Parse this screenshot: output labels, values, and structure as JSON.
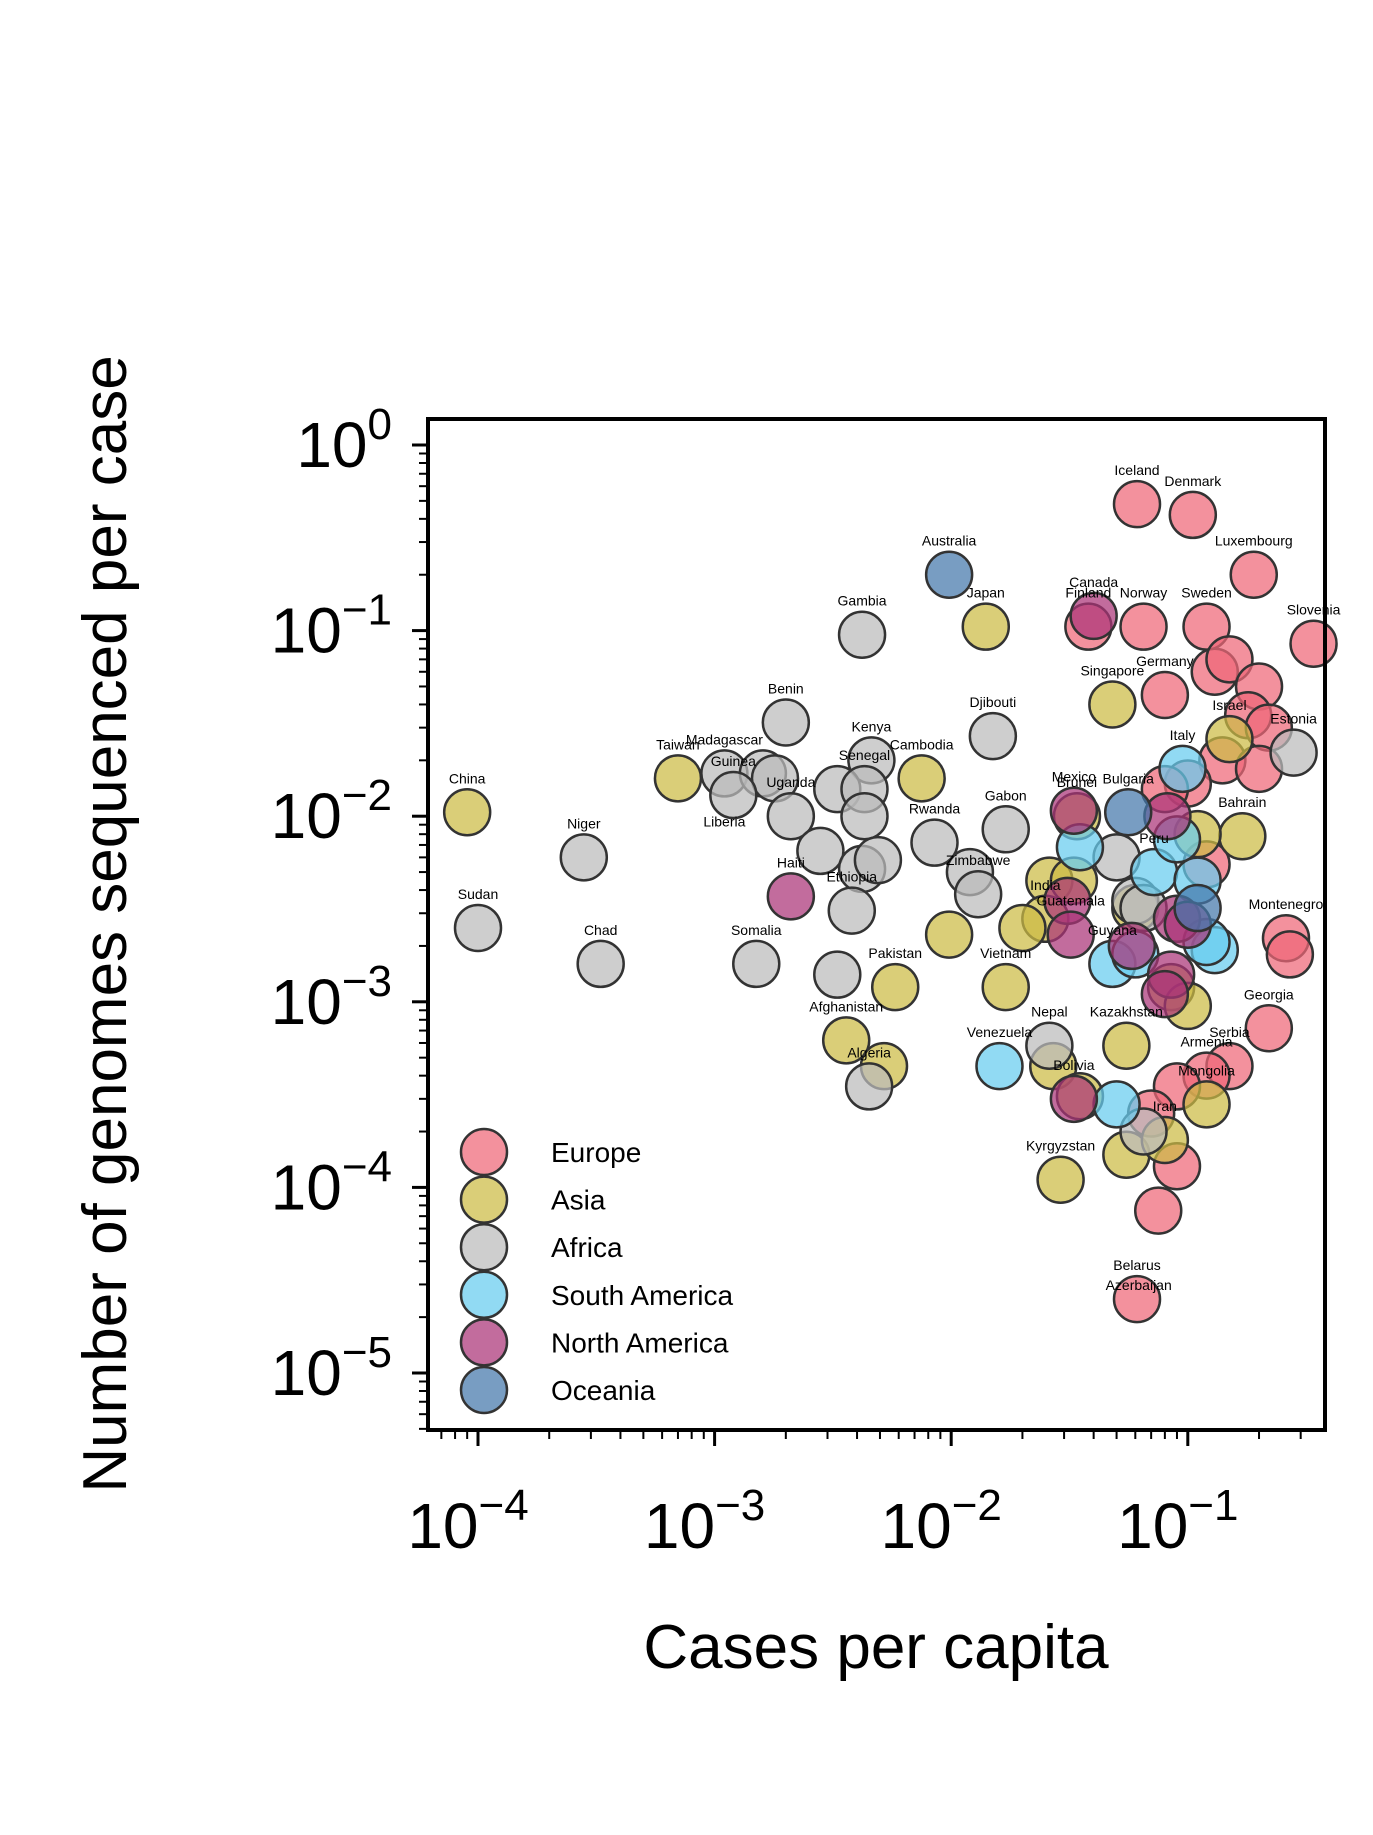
{
  "chart_data": {
    "type": "scatter",
    "xlabel": "Cases per capita",
    "ylabel": "Number of genomes sequenced per case",
    "x_scale": "log",
    "y_scale": "log",
    "xlim": [
      6e-05,
      0.5
    ],
    "ylim": [
      4.5e-06,
      1.4
    ],
    "x_ticks": [
      {
        "base": "10",
        "exp": "−4",
        "value": 0.0001
      },
      {
        "base": "10",
        "exp": "−3",
        "value": 0.001
      },
      {
        "base": "10",
        "exp": "−2",
        "value": 0.01
      },
      {
        "base": "10",
        "exp": "−1",
        "value": 0.1
      }
    ],
    "y_ticks": [
      {
        "base": "10",
        "exp": "0",
        "value": 1
      },
      {
        "base": "10",
        "exp": "−1",
        "value": 0.1
      },
      {
        "base": "10",
        "exp": "−2",
        "value": 0.01
      },
      {
        "base": "10",
        "exp": "−3",
        "value": 0.001
      },
      {
        "base": "10",
        "exp": "−4",
        "value": 0.0001
      },
      {
        "base": "10",
        "exp": "−5",
        "value": 1e-05
      }
    ],
    "grid": false,
    "legend_position": "lower-left",
    "series": [
      {
        "name": "Europe",
        "color": "#ee6677",
        "points": [
          {
            "x": 0.061,
            "y": 0.48,
            "label": "Iceland"
          },
          {
            "x": 0.105,
            "y": 0.42,
            "label": "Denmark"
          },
          {
            "x": 0.19,
            "y": 0.2,
            "label": "Luxembourg"
          },
          {
            "x": 0.12,
            "y": 0.105,
            "label": "Sweden"
          },
          {
            "x": 0.038,
            "y": 0.105,
            "label": "Finland"
          },
          {
            "x": 0.065,
            "y": 0.105,
            "label": "Norway"
          },
          {
            "x": 0.34,
            "y": 0.085,
            "label": "Slovenia"
          },
          {
            "x": 0.08,
            "y": 0.045,
            "label": "Germany"
          },
          {
            "x": 0.13,
            "y": 0.06,
            "label": ""
          },
          {
            "x": 0.15,
            "y": 0.07,
            "label": ""
          },
          {
            "x": 0.2,
            "y": 0.05,
            "label": ""
          },
          {
            "x": 0.18,
            "y": 0.035,
            "label": ""
          },
          {
            "x": 0.22,
            "y": 0.03,
            "label": ""
          },
          {
            "x": 0.14,
            "y": 0.02,
            "label": ""
          },
          {
            "x": 0.2,
            "y": 0.018,
            "label": ""
          },
          {
            "x": 0.1,
            "y": 0.015,
            "label": ""
          },
          {
            "x": 0.08,
            "y": 0.014,
            "label": ""
          },
          {
            "x": 0.12,
            "y": 0.0055,
            "label": ""
          },
          {
            "x": 0.26,
            "y": 0.0022,
            "label": "Montenegro"
          },
          {
            "x": 0.27,
            "y": 0.0018,
            "label": ""
          },
          {
            "x": 0.22,
            "y": 0.00072,
            "label": "Georgia"
          },
          {
            "x": 0.15,
            "y": 0.00045,
            "label": "Serbia"
          },
          {
            "x": 0.12,
            "y": 0.0004,
            "label": "Armenia"
          },
          {
            "x": 0.09,
            "y": 0.00035,
            "label": ""
          },
          {
            "x": 0.07,
            "y": 0.00025,
            "label": ""
          },
          {
            "x": 0.09,
            "y": 0.00013,
            "label": ""
          },
          {
            "x": 0.075,
            "y": 7.5e-05,
            "label": ""
          },
          {
            "x": 0.061,
            "y": 2.5e-05,
            "label": "Belarus"
          }
        ]
      },
      {
        "name": "Asia",
        "color": "#ccbb44",
        "points": [
          {
            "x": 9e-05,
            "y": 0.0105,
            "label": "China"
          },
          {
            "x": 0.0007,
            "y": 0.016,
            "label": "Taiwan"
          },
          {
            "x": 0.014,
            "y": 0.105,
            "label": "Japan"
          },
          {
            "x": 0.048,
            "y": 0.04,
            "label": "Singapore"
          },
          {
            "x": 0.0075,
            "y": 0.016,
            "label": "Cambodia"
          },
          {
            "x": 0.034,
            "y": 0.01,
            "label": "Brunei"
          },
          {
            "x": 0.15,
            "y": 0.026,
            "label": "Israel"
          },
          {
            "x": 0.17,
            "y": 0.0078,
            "label": "Bahrain"
          },
          {
            "x": 0.11,
            "y": 0.008,
            "label": ""
          },
          {
            "x": 0.026,
            "y": 0.0045,
            "label": ""
          },
          {
            "x": 0.033,
            "y": 0.0045,
            "label": ""
          },
          {
            "x": 0.025,
            "y": 0.0028,
            "label": "India"
          },
          {
            "x": 0.02,
            "y": 0.0025,
            "label": ""
          },
          {
            "x": 0.0098,
            "y": 0.0023,
            "label": ""
          },
          {
            "x": 0.017,
            "y": 0.0012,
            "label": "Vietnam"
          },
          {
            "x": 0.0058,
            "y": 0.0012,
            "label": "Pakistan"
          },
          {
            "x": 0.0036,
            "y": 0.00062,
            "label": "Afghanistan"
          },
          {
            "x": 0.0052,
            "y": 0.00045,
            "label": ""
          },
          {
            "x": 0.055,
            "y": 0.00058,
            "label": "Kazakhstan"
          },
          {
            "x": 0.027,
            "y": 0.00045,
            "label": ""
          },
          {
            "x": 0.035,
            "y": 0.00031,
            "label": ""
          },
          {
            "x": 0.055,
            "y": 0.00015,
            "label": ""
          },
          {
            "x": 0.08,
            "y": 0.00018,
            "label": "Iran"
          },
          {
            "x": 0.12,
            "y": 0.00028,
            "label": "Mongolia"
          },
          {
            "x": 0.029,
            "y": 0.00011,
            "label": "Kyrgyzstan"
          },
          {
            "x": 0.06,
            "y": 0.0032,
            "label": ""
          },
          {
            "x": 0.085,
            "y": 0.0012,
            "label": ""
          },
          {
            "x": 0.1,
            "y": 0.00095,
            "label": ""
          }
        ]
      },
      {
        "name": "Africa",
        "color": "#bbbbbb",
        "points": [
          {
            "x": 0.0042,
            "y": 0.095,
            "label": "Gambia"
          },
          {
            "x": 0.002,
            "y": 0.032,
            "label": "Benin"
          },
          {
            "x": 0.0046,
            "y": 0.02,
            "label": "Kenya"
          },
          {
            "x": 0.015,
            "y": 0.027,
            "label": "Djibouti"
          },
          {
            "x": 0.0011,
            "y": 0.017,
            "label": "Madagascar"
          },
          {
            "x": 0.0016,
            "y": 0.017,
            "label": ""
          },
          {
            "x": 0.0018,
            "y": 0.016,
            "label": ""
          },
          {
            "x": 0.0012,
            "y": 0.013,
            "label": "Guinea"
          },
          {
            "x": 0.0021,
            "y": 0.01,
            "label": "Uganda"
          },
          {
            "x": 0.0033,
            "y": 0.014,
            "label": ""
          },
          {
            "x": 0.0043,
            "y": 0.014,
            "label": "Senegal"
          },
          {
            "x": 0.0043,
            "y": 0.01,
            "label": ""
          },
          {
            "x": 0.0028,
            "y": 0.0065,
            "label": ""
          },
          {
            "x": 0.0042,
            "y": 0.0052,
            "label": ""
          },
          {
            "x": 0.0049,
            "y": 0.0058,
            "label": ""
          },
          {
            "x": 0.0085,
            "y": 0.0072,
            "label": "Rwanda"
          },
          {
            "x": 0.017,
            "y": 0.0085,
            "label": "Gabon"
          },
          {
            "x": 0.012,
            "y": 0.005,
            "label": ""
          },
          {
            "x": 0.013,
            "y": 0.0038,
            "label": "Zimbabwe"
          },
          {
            "x": 0.0038,
            "y": 0.0031,
            "label": "Ethiopia"
          },
          {
            "x": 0.00028,
            "y": 0.006,
            "label": "Niger"
          },
          {
            "x": 0.0001,
            "y": 0.0025,
            "label": "Sudan"
          },
          {
            "x": 0.0015,
            "y": 0.0016,
            "label": "Somalia"
          },
          {
            "x": 0.00033,
            "y": 0.0016,
            "label": "Chad"
          },
          {
            "x": 0.0033,
            "y": 0.0014,
            "label": ""
          },
          {
            "x": 0.0045,
            "y": 0.00035,
            "label": "Algeria"
          },
          {
            "x": 0.026,
            "y": 0.00058,
            "label": "Nepal"
          },
          {
            "x": 0.05,
            "y": 0.006,
            "label": ""
          },
          {
            "x": 0.06,
            "y": 0.0035,
            "label": ""
          },
          {
            "x": 0.065,
            "y": 0.0032,
            "label": ""
          },
          {
            "x": 0.065,
            "y": 0.0002,
            "label": ""
          },
          {
            "x": 0.28,
            "y": 0.022,
            "label": "Estonia"
          }
        ]
      },
      {
        "name": "South America",
        "color": "#66ccee",
        "points": [
          {
            "x": 0.072,
            "y": 0.005,
            "label": "Peru"
          },
          {
            "x": 0.035,
            "y": 0.0068,
            "label": ""
          },
          {
            "x": 0.048,
            "y": 0.0016,
            "label": "Guyana"
          },
          {
            "x": 0.06,
            "y": 0.0018,
            "label": ""
          },
          {
            "x": 0.11,
            "y": 0.0045,
            "label": ""
          },
          {
            "x": 0.13,
            "y": 0.0019,
            "label": ""
          },
          {
            "x": 0.12,
            "y": 0.0021,
            "label": ""
          },
          {
            "x": 0.09,
            "y": 0.0075,
            "label": ""
          },
          {
            "x": 0.016,
            "y": 0.00045,
            "label": "Venezuela"
          },
          {
            "x": 0.05,
            "y": 0.00028,
            "label": ""
          },
          {
            "x": 0.095,
            "y": 0.018,
            "label": "Italy"
          }
        ]
      },
      {
        "name": "North America",
        "color": "#aa3377",
        "points": [
          {
            "x": 0.04,
            "y": 0.12,
            "label": "Canada"
          },
          {
            "x": 0.0021,
            "y": 0.0037,
            "label": "Haiti"
          },
          {
            "x": 0.033,
            "y": 0.0107,
            "label": "Mexico"
          },
          {
            "x": 0.031,
            "y": 0.0035,
            "label": ""
          },
          {
            "x": 0.032,
            "y": 0.0023,
            "label": "Guatemala"
          },
          {
            "x": 0.058,
            "y": 0.002,
            "label": ""
          },
          {
            "x": 0.082,
            "y": 0.01,
            "label": ""
          },
          {
            "x": 0.09,
            "y": 0.0028,
            "label": ""
          },
          {
            "x": 0.1,
            "y": 0.0026,
            "label": ""
          },
          {
            "x": 0.085,
            "y": 0.0014,
            "label": ""
          },
          {
            "x": 0.08,
            "y": 0.0011,
            "label": ""
          },
          {
            "x": 0.033,
            "y": 0.0003,
            "label": "Bolivia"
          }
        ]
      },
      {
        "name": "Oceania",
        "color": "#4477aa",
        "points": [
          {
            "x": 0.0098,
            "y": 0.2,
            "label": "Australia"
          },
          {
            "x": 0.056,
            "y": 0.0105,
            "label": "Bulgaria"
          },
          {
            "x": 0.11,
            "y": 0.0032,
            "label": ""
          }
        ]
      }
    ],
    "extra_labels": [
      {
        "x": 0.0011,
        "y": 0.0088,
        "label": "Liberia"
      },
      {
        "x": 0.062,
        "y": 2.8e-05,
        "label": "Azerbaijan"
      }
    ]
  }
}
